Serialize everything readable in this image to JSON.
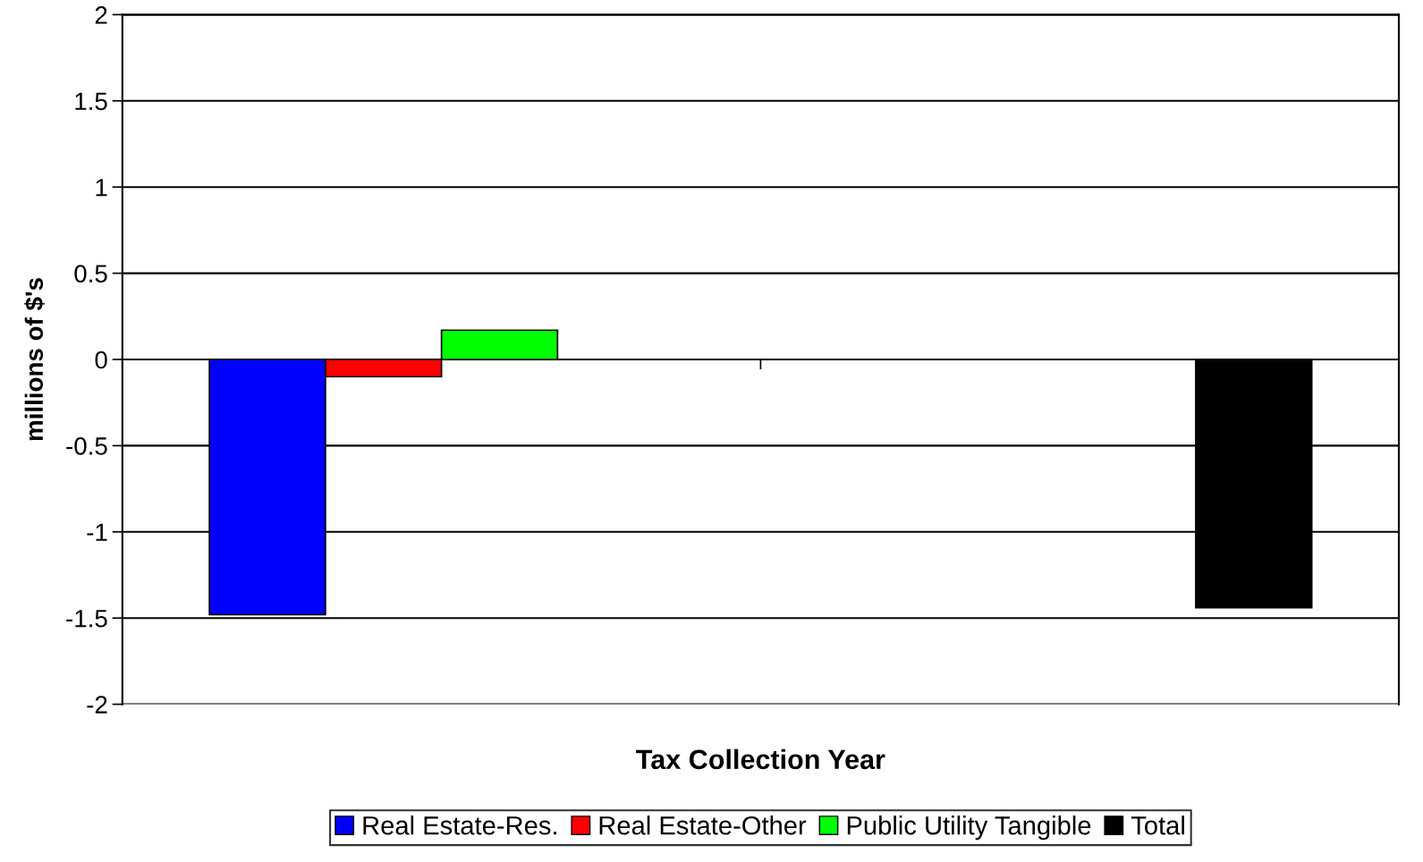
{
  "chart_data": {
    "type": "bar",
    "xlabel": "Tax Collection Year",
    "ylabel": "millions of $'s",
    "categories": [
      null,
      null
    ],
    "series": [
      {
        "name": "Real Estate-Res.",
        "color": "#0000ff",
        "values": [
          -1.48,
          null
        ]
      },
      {
        "name": "Real Estate-Other",
        "color": "#ff0000",
        "values": [
          -0.1,
          null
        ]
      },
      {
        "name": "Public Utility Tangible",
        "color": "#00ff00",
        "values": [
          0.17,
          null
        ]
      },
      {
        "name": "Total",
        "color": "#000000",
        "values": [
          null,
          -1.44
        ]
      }
    ],
    "ylim": [
      -2,
      2
    ],
    "yticks": [
      -2,
      -1.5,
      -1,
      -0.5,
      0,
      0.5,
      1,
      1.5,
      2
    ],
    "grid": "y",
    "legend": "bottom"
  }
}
